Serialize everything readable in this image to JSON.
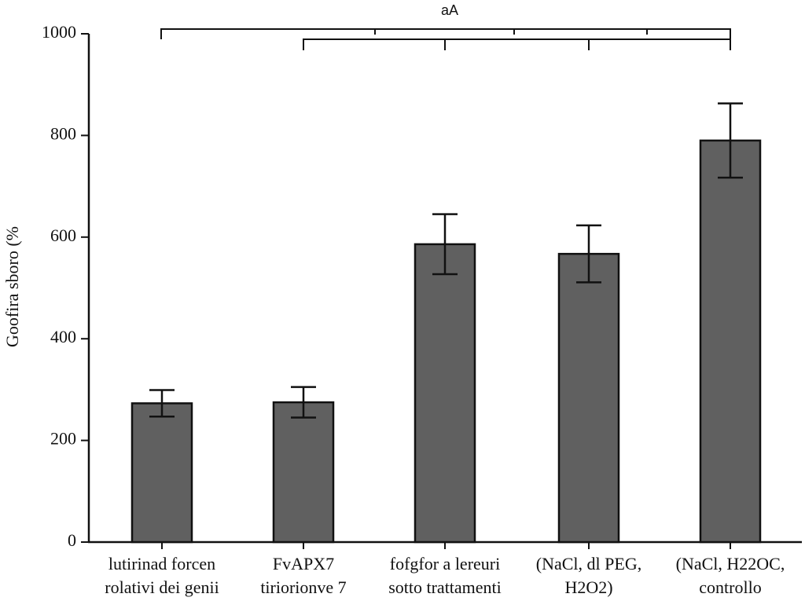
{
  "chart_data": {
    "type": "bar",
    "title": "aA",
    "y_label": "Goofira sboro (%",
    "categories": [
      [
        "lutirinad forcen",
        "rolativi dei genii"
      ],
      [
        "FvAPX7",
        "tiriorionve 7"
      ],
      [
        "fofgfor a lereuri",
        "sotto trattamenti"
      ],
      [
        "(NaCl, dl PEG,",
        "H2O2)"
      ],
      [
        "(NaCl, H22OC,",
        "controllo"
      ]
    ],
    "values": [
      273,
      275,
      586,
      567,
      790
    ],
    "errors": [
      26,
      30,
      59,
      56,
      73
    ],
    "color": "#606060",
    "ylim": [
      0,
      1000
    ],
    "yticks": [
      0,
      200,
      400,
      600,
      800,
      1000
    ]
  }
}
